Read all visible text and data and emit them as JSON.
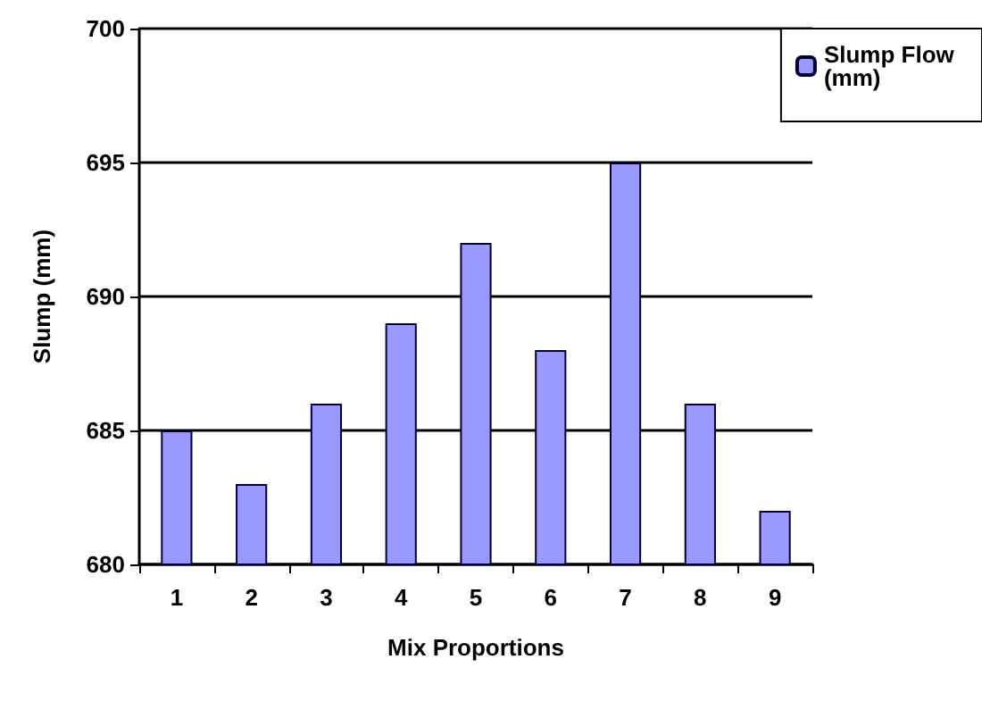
{
  "chart_data": {
    "type": "bar",
    "xlabel": "Mix Proportions",
    "ylabel": "Slump (mm)",
    "categories": [
      "1",
      "2",
      "3",
      "4",
      "5",
      "6",
      "7",
      "8",
      "9"
    ],
    "series": [
      {
        "name": "Slump Flow (mm)",
        "color": "#9999ff",
        "values": [
          685,
          683,
          686,
          689,
          692,
          688,
          695,
          686,
          682
        ]
      }
    ],
    "ylim": [
      680,
      700
    ],
    "yticks": [
      680,
      685,
      690,
      695,
      700
    ],
    "grid": "y",
    "legend": "top right"
  }
}
